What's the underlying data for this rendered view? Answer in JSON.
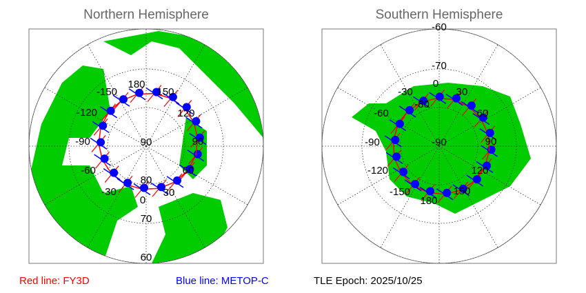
{
  "panels": [
    {
      "title": "Northern Hemisphere",
      "graticule_labels": [
        "60",
        "70",
        "80",
        "90",
        "-150",
        "180",
        "150",
        "120",
        "90",
        "60",
        "30",
        "0",
        "-30",
        "-60",
        "-90",
        "-120"
      ]
    },
    {
      "title": "Southern Hemisphere",
      "graticule_labels": [
        "-60",
        "-70",
        "-80",
        "-90",
        "0",
        "30",
        "60",
        "90",
        "120",
        "150",
        "180",
        "-150",
        "-120",
        "-90",
        "-60",
        "-30"
      ]
    }
  ],
  "legend": {
    "red": "Red line: FY3D",
    "blue": "Blue line: METOP-C",
    "epoch": "TLE Epoch: 2025/10/25"
  }
}
